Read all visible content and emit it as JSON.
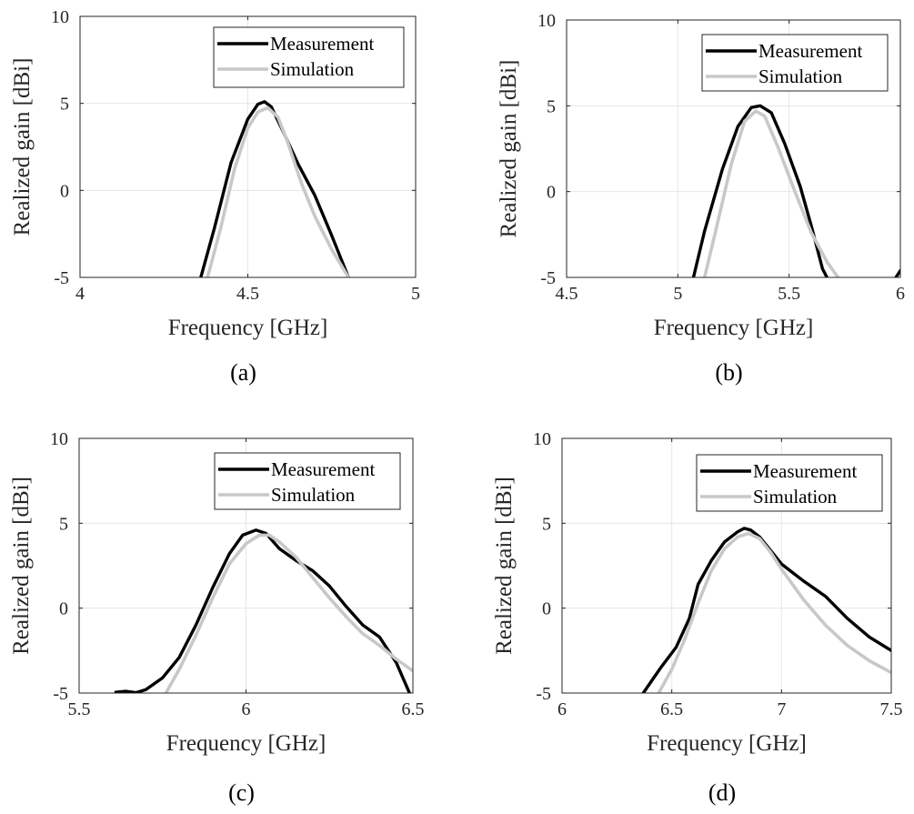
{
  "chart_data": [
    {
      "id": "a",
      "type": "line",
      "caption": "(a)",
      "xlabel": "Frequency [GHz]",
      "ylabel": "Realized gain [dBi]",
      "xlim": [
        4,
        5
      ],
      "ylim": [
        -5,
        10
      ],
      "xticks": [
        4,
        4.5,
        5
      ],
      "xtick_labels": [
        "4",
        "4.5",
        "5"
      ],
      "yticks": [
        -5,
        0,
        5,
        10
      ],
      "ytick_labels": [
        "-5",
        "0",
        "5",
        "10"
      ],
      "grid": true,
      "legend": "top-right",
      "series": [
        {
          "name": "Measurement",
          "color": "#000000",
          "points": [
            [
              4.36,
              -5
            ],
            [
              4.4,
              -2.2
            ],
            [
              4.45,
              1.6
            ],
            [
              4.5,
              4.1
            ],
            [
              4.53,
              4.95
            ],
            [
              4.55,
              5.1
            ],
            [
              4.57,
              4.8
            ],
            [
              4.6,
              3.6
            ],
            [
              4.65,
              1.5
            ],
            [
              4.7,
              -0.3
            ],
            [
              4.75,
              -2.6
            ],
            [
              4.8,
              -5
            ]
          ]
        },
        {
          "name": "Simulation",
          "color": "#c8c8c8",
          "points": [
            [
              4.38,
              -5
            ],
            [
              4.42,
              -2.1
            ],
            [
              4.46,
              1.2
            ],
            [
              4.5,
              3.6
            ],
            [
              4.53,
              4.5
            ],
            [
              4.56,
              4.75
            ],
            [
              4.59,
              4.2
            ],
            [
              4.62,
              2.7
            ],
            [
              4.66,
              0.4
            ],
            [
              4.7,
              -1.5
            ],
            [
              4.75,
              -3.4
            ],
            [
              4.8,
              -5
            ]
          ]
        }
      ]
    },
    {
      "id": "b",
      "type": "line",
      "caption": "(b)",
      "xlabel": "Frequency [GHz]",
      "ylabel": "Realized gain [dBi]",
      "xlim": [
        4.5,
        6
      ],
      "ylim": [
        -5,
        10
      ],
      "xticks": [
        4.5,
        5,
        5.5,
        6
      ],
      "xtick_labels": [
        "4.5",
        "5",
        "5.5",
        "6"
      ],
      "yticks": [
        -5,
        0,
        5,
        10
      ],
      "ytick_labels": [
        "-5",
        "0",
        "5",
        "10"
      ],
      "grid": true,
      "legend": "top-right",
      "series": [
        {
          "name": "Measurement",
          "color": "#000000",
          "points": [
            [
              5.07,
              -5
            ],
            [
              5.12,
              -2.3
            ],
            [
              5.2,
              1.3
            ],
            [
              5.27,
              3.8
            ],
            [
              5.33,
              4.9
            ],
            [
              5.37,
              5.0
            ],
            [
              5.42,
              4.6
            ],
            [
              5.48,
              2.8
            ],
            [
              5.55,
              0.3
            ],
            [
              5.6,
              -2.0
            ],
            [
              5.65,
              -4.5
            ],
            [
              5.67,
              -5
            ]
          ]
        },
        {
          "name": "Simulation",
          "color": "#c8c8c8",
          "points": [
            [
              5.12,
              -5
            ],
            [
              5.17,
              -2.3
            ],
            [
              5.24,
              1.6
            ],
            [
              5.3,
              4.1
            ],
            [
              5.35,
              4.7
            ],
            [
              5.39,
              4.4
            ],
            [
              5.45,
              2.6
            ],
            [
              5.52,
              0.2
            ],
            [
              5.6,
              -2.4
            ],
            [
              5.67,
              -4.1
            ],
            [
              5.72,
              -5
            ]
          ]
        },
        {
          "name": "",
          "color": "#000000",
          "points": [
            [
              5.98,
              -5
            ],
            [
              6.0,
              -4.6
            ]
          ]
        }
      ]
    },
    {
      "id": "c",
      "type": "line",
      "caption": "(c)",
      "xlabel": "Frequency [GHz]",
      "ylabel": "Realized gain [dBi]",
      "xlim": [
        5.5,
        6.5
      ],
      "ylim": [
        -5,
        10
      ],
      "xticks": [
        5.5,
        6,
        6.5
      ],
      "xtick_labels": [
        "5.5",
        "6",
        "6.5"
      ],
      "yticks": [
        -5,
        0,
        5,
        10
      ],
      "ytick_labels": [
        "-5",
        "0",
        "5",
        "10"
      ],
      "grid": true,
      "legend": "top-right",
      "series": [
        {
          "name": "Measurement",
          "color": "#000000",
          "points": [
            [
              5.61,
              -4.95
            ],
            [
              5.64,
              -4.9
            ],
            [
              5.67,
              -4.98
            ],
            [
              5.7,
              -4.8
            ],
            [
              5.75,
              -4.1
            ],
            [
              5.8,
              -2.9
            ],
            [
              5.85,
              -1.0
            ],
            [
              5.9,
              1.2
            ],
            [
              5.95,
              3.2
            ],
            [
              5.99,
              4.3
            ],
            [
              6.03,
              4.6
            ],
            [
              6.06,
              4.4
            ],
            [
              6.1,
              3.5
            ],
            [
              6.15,
              2.8
            ],
            [
              6.2,
              2.2
            ],
            [
              6.25,
              1.3
            ],
            [
              6.3,
              0.1
            ],
            [
              6.35,
              -1.0
            ],
            [
              6.4,
              -1.7
            ],
            [
              6.45,
              -3.2
            ],
            [
              6.49,
              -5
            ]
          ]
        },
        {
          "name": "Simulation",
          "color": "#c8c8c8",
          "points": [
            [
              5.76,
              -5
            ],
            [
              5.8,
              -3.6
            ],
            [
              5.85,
              -1.6
            ],
            [
              5.9,
              0.6
            ],
            [
              5.95,
              2.6
            ],
            [
              6.0,
              3.8
            ],
            [
              6.04,
              4.3
            ],
            [
              6.07,
              4.3
            ],
            [
              6.1,
              3.9
            ],
            [
              6.15,
              3.0
            ],
            [
              6.2,
              1.8
            ],
            [
              6.25,
              0.6
            ],
            [
              6.3,
              -0.5
            ],
            [
              6.35,
              -1.5
            ],
            [
              6.4,
              -2.2
            ],
            [
              6.45,
              -3.0
            ],
            [
              6.5,
              -3.7
            ]
          ]
        }
      ]
    },
    {
      "id": "d",
      "type": "line",
      "caption": "(d)",
      "xlabel": "Frequency [GHz]",
      "ylabel": "Realized gain [dBi]",
      "xlim": [
        6,
        7.5
      ],
      "ylim": [
        -5,
        10
      ],
      "xticks": [
        6,
        6.5,
        7,
        7.5
      ],
      "xtick_labels": [
        "6",
        "6.5",
        "7",
        "7.5"
      ],
      "yticks": [
        -5,
        0,
        5,
        10
      ],
      "ytick_labels": [
        "-5",
        "0",
        "5",
        "10"
      ],
      "grid": true,
      "legend": "top-right",
      "series": [
        {
          "name": "Measurement",
          "color": "#000000",
          "points": [
            [
              6.37,
              -5
            ],
            [
              6.45,
              -3.5
            ],
            [
              6.52,
              -2.3
            ],
            [
              6.58,
              -0.6
            ],
            [
              6.62,
              1.4
            ],
            [
              6.68,
              2.8
            ],
            [
              6.74,
              3.9
            ],
            [
              6.8,
              4.5
            ],
            [
              6.83,
              4.7
            ],
            [
              6.86,
              4.6
            ],
            [
              6.9,
              4.2
            ],
            [
              6.95,
              3.4
            ],
            [
              7.0,
              2.6
            ],
            [
              7.05,
              2.1
            ],
            [
              7.1,
              1.6
            ],
            [
              7.2,
              0.7
            ],
            [
              7.3,
              -0.6
            ],
            [
              7.4,
              -1.7
            ],
            [
              7.5,
              -2.5
            ]
          ]
        },
        {
          "name": "Simulation",
          "color": "#c8c8c8",
          "points": [
            [
              6.44,
              -5
            ],
            [
              6.5,
              -3.6
            ],
            [
              6.56,
              -1.8
            ],
            [
              6.62,
              0.3
            ],
            [
              6.68,
              2.2
            ],
            [
              6.74,
              3.5
            ],
            [
              6.8,
              4.2
            ],
            [
              6.85,
              4.4
            ],
            [
              6.9,
              4.1
            ],
            [
              6.95,
              3.3
            ],
            [
              7.0,
              2.3
            ],
            [
              7.1,
              0.5
            ],
            [
              7.2,
              -1.0
            ],
            [
              7.3,
              -2.2
            ],
            [
              7.4,
              -3.1
            ],
            [
              7.5,
              -3.8
            ]
          ]
        }
      ]
    }
  ]
}
